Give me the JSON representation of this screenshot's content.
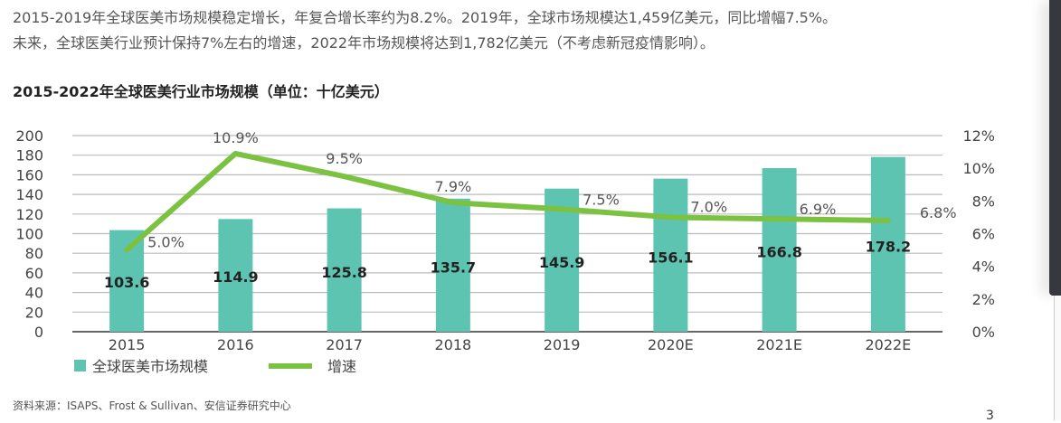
{
  "text": {
    "paragraph1": "2015-2019年全球医美市场规模稳定增长，年复合增长率约为8.2%。2019年，全球市场规模达1,459亿美元，同比增幅7.5%。",
    "paragraph2": "未来，全球医美行业预计保持7%左右的增速，2022年市场规模将达到1,782亿美元（不考虑新冠疫情影响）。",
    "source": "资料来源：ISAPS、Frost & Sullivan、安信证券研究中心",
    "page_number": "3"
  },
  "chart_data": {
    "type": "bar+line",
    "title": "2015-2022年全球医美行业市场规模（单位：十亿美元）",
    "categories": [
      "2015",
      "2016",
      "2017",
      "2018",
      "2019",
      "2020E",
      "2021E",
      "2022E"
    ],
    "series": [
      {
        "name": "全球医美市场规模",
        "type": "bar",
        "axis": "left",
        "color": "#5ec4b2",
        "values": [
          103.6,
          114.9,
          125.8,
          135.7,
          145.9,
          156.1,
          166.8,
          178.2
        ],
        "labels": [
          "103.6",
          "114.9",
          "125.8",
          "135.7",
          "145.9",
          "156.1",
          "166.8",
          "178.2"
        ]
      },
      {
        "name": "增速",
        "type": "line",
        "axis": "right",
        "color": "#7cc242",
        "values": [
          5.0,
          10.9,
          9.5,
          7.9,
          7.5,
          7.0,
          6.9,
          6.8
        ],
        "labels": [
          "5.0%",
          "10.9%",
          "9.5%",
          "7.9%",
          "7.5%",
          "7.0%",
          "6.9%",
          "6.8%"
        ]
      }
    ],
    "y_left": {
      "range": [
        0,
        200
      ],
      "ticks": [
        "0",
        "20",
        "40",
        "60",
        "80",
        "100",
        "120",
        "140",
        "160",
        "180",
        "200"
      ]
    },
    "y_right": {
      "range": [
        0,
        12
      ],
      "ticks": [
        "0%",
        "2%",
        "4%",
        "6%",
        "8%",
        "10%",
        "12%"
      ]
    },
    "grid": true,
    "legend": "bottom-left"
  }
}
